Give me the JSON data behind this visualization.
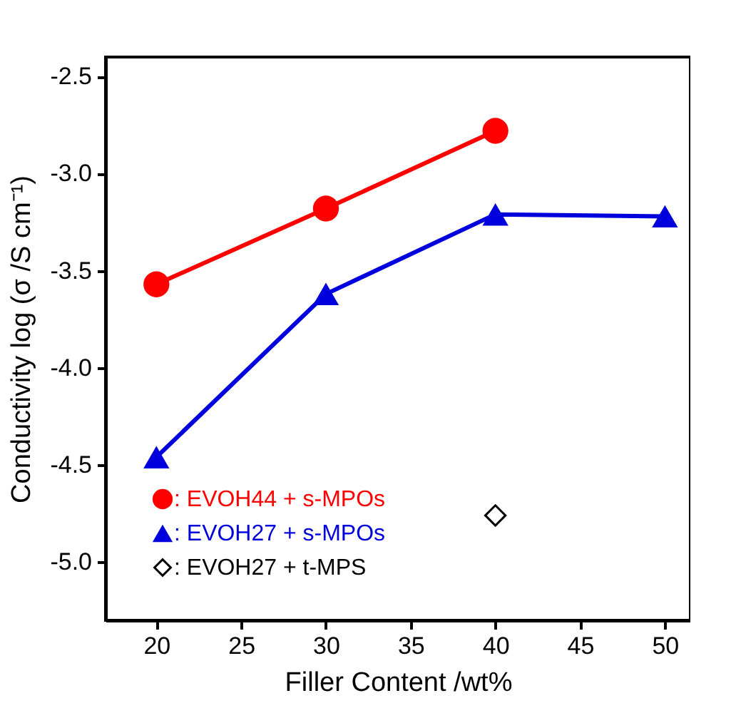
{
  "chart_data": {
    "type": "line",
    "xlabel": "Filler Content /wt%",
    "ylabel": "Conductivity log (σ /S cm⁻¹)",
    "xlim": [
      17,
      51.5
    ],
    "xticks": [
      20,
      25,
      30,
      35,
      40,
      45,
      50
    ],
    "ylim": [
      -5.3,
      -2.4
    ],
    "yticks": [
      {
        "value": -5,
        "label": "-5.0"
      },
      -4.5,
      {
        "value": -4,
        "label": "-4.0"
      },
      -3.5,
      {
        "value": -3,
        "label": "-3.0"
      },
      -2.5
    ],
    "grid": false,
    "legend": "bottom left",
    "series": [
      {
        "name": ": EVOH44 + s-MPOs",
        "color": "#ff0000",
        "marker": "circle",
        "x": [
          20,
          30,
          40
        ],
        "values": [
          -3.57,
          -3.18,
          -2.78
        ]
      },
      {
        "name": ": EVOH27 + s-MPOs",
        "color": "#0000dd",
        "marker": "triangle",
        "x": [
          20,
          30,
          40,
          50
        ],
        "values": [
          -4.46,
          -3.62,
          -3.21,
          -3.22
        ]
      },
      {
        "name": ": EVOH27 + t-MPS",
        "color": "#000000",
        "type": "scatter",
        "marker": "diamond",
        "x": [
          40
        ],
        "values": [
          -4.76
        ]
      }
    ]
  }
}
